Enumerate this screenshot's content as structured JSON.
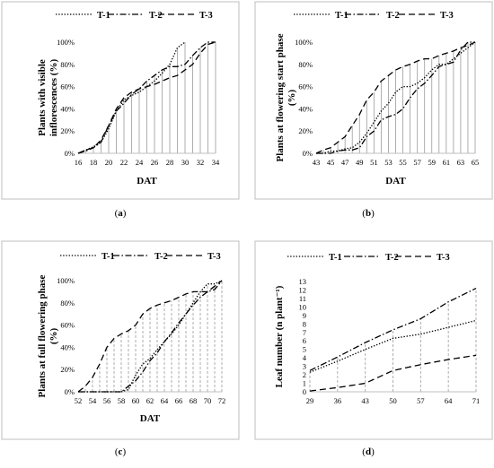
{
  "chart_data": [
    {
      "type": "line",
      "caption": "a",
      "xlabel": "DAT",
      "ylabel": "Plants with visible inflorescences (%)",
      "x": [
        16,
        17,
        18,
        19,
        20,
        21,
        22,
        23,
        24,
        25,
        26,
        27,
        28,
        29,
        30,
        31,
        32,
        33,
        34
      ],
      "x_ticks": [
        "16",
        "18",
        "20",
        "22",
        "24",
        "26",
        "28",
        "30",
        "32",
        "34"
      ],
      "y_ticks": [
        "0%",
        "20%",
        "40%",
        "60%",
        "80%",
        "100%"
      ],
      "ylim": [
        0,
        100
      ],
      "series": [
        {
          "name": "T-1",
          "values": [
            0,
            3,
            6,
            10,
            22,
            38,
            48,
            52,
            55,
            60,
            65,
            72,
            80,
            95,
            100,
            null,
            null,
            null,
            null
          ]
        },
        {
          "name": "T-2",
          "values": [
            0,
            2,
            5,
            10,
            25,
            38,
            45,
            53,
            58,
            65,
            70,
            75,
            78,
            78,
            80,
            88,
            95,
            100,
            100
          ]
        },
        {
          "name": "T-3",
          "values": [
            0,
            3,
            5,
            12,
            25,
            40,
            50,
            55,
            58,
            60,
            62,
            65,
            68,
            70,
            75,
            80,
            90,
            98,
            100
          ]
        }
      ]
    },
    {
      "type": "line",
      "caption": "b",
      "xlabel": "DAT",
      "ylabel": "Plants at flowering start phase (%)",
      "x": [
        43,
        44,
        45,
        46,
        47,
        48,
        49,
        50,
        51,
        52,
        53,
        54,
        55,
        56,
        57,
        58,
        59,
        60,
        61,
        62,
        63,
        64,
        65
      ],
      "x_ticks": [
        "43",
        "45",
        "47",
        "49",
        "51",
        "53",
        "55",
        "57",
        "59",
        "61",
        "63",
        "65"
      ],
      "y_ticks": [
        "0%",
        "20%",
        "40%",
        "60%",
        "80%",
        "100%"
      ],
      "ylim": [
        0,
        100
      ],
      "series": [
        {
          "name": "T-1",
          "values": [
            0,
            0,
            2,
            2,
            4,
            5,
            10,
            18,
            28,
            38,
            45,
            55,
            60,
            60,
            63,
            68,
            75,
            80,
            80,
            85,
            90,
            95,
            100
          ]
        },
        {
          "name": "T-2",
          "values": [
            0,
            0,
            0,
            2,
            3,
            3,
            5,
            15,
            20,
            30,
            33,
            35,
            40,
            50,
            58,
            63,
            70,
            78,
            80,
            82,
            93,
            100,
            100
          ]
        },
        {
          "name": "T-3",
          "values": [
            0,
            3,
            5,
            10,
            15,
            25,
            35,
            48,
            55,
            65,
            70,
            75,
            78,
            80,
            83,
            85,
            85,
            88,
            90,
            92,
            95,
            97,
            100
          ]
        }
      ]
    },
    {
      "type": "line",
      "caption": "c",
      "xlabel": "DAT",
      "ylabel": "Plants at full flowering phase (%)",
      "x": [
        52,
        53,
        54,
        55,
        56,
        57,
        58,
        59,
        60,
        61,
        62,
        63,
        64,
        65,
        66,
        67,
        68,
        69,
        70,
        71,
        72
      ],
      "x_ticks": [
        "52",
        "54",
        "56",
        "58",
        "60",
        "62",
        "64",
        "66",
        "68",
        "70",
        "72"
      ],
      "y_ticks": [
        "0%",
        "20%",
        "40%",
        "60%",
        "80%",
        "100%"
      ],
      "ylim": [
        0,
        100
      ],
      "series": [
        {
          "name": "T-1",
          "values": [
            0,
            0,
            0,
            0,
            0,
            0,
            0,
            2,
            15,
            25,
            30,
            38,
            45,
            52,
            60,
            70,
            80,
            90,
            97,
            97,
            100
          ]
        },
        {
          "name": "T-2",
          "values": [
            0,
            0,
            0,
            0,
            0,
            0,
            0,
            5,
            10,
            18,
            28,
            35,
            45,
            53,
            62,
            70,
            78,
            85,
            90,
            92,
            100
          ]
        },
        {
          "name": "T-3",
          "values": [
            0,
            5,
            13,
            25,
            40,
            48,
            52,
            55,
            60,
            70,
            75,
            78,
            80,
            82,
            85,
            88,
            90,
            90,
            90,
            95,
            100
          ]
        }
      ]
    },
    {
      "type": "line",
      "caption": "d",
      "xlabel": "",
      "ylabel": "Leaf number (n plant⁻¹)",
      "x": [
        29,
        36,
        43,
        50,
        57,
        64,
        71
      ],
      "x_ticks": [
        "29",
        "36",
        "43",
        "50",
        "57",
        "64",
        "71"
      ],
      "y_ticks": [
        "0",
        "1",
        "2",
        "3",
        "4",
        "5",
        "6",
        "7",
        "8",
        "9",
        "10",
        "11",
        "12",
        "13"
      ],
      "ylim": [
        0,
        13
      ],
      "series": [
        {
          "name": "T-1",
          "values": [
            2.3,
            3.6,
            5.0,
            6.3,
            6.8,
            7.6,
            8.4
          ]
        },
        {
          "name": "T-2",
          "values": [
            2.5,
            4.1,
            5.8,
            7.3,
            8.6,
            10.6,
            12.2
          ]
        },
        {
          "name": "T-3",
          "values": [
            0.1,
            0.5,
            1.0,
            2.5,
            3.2,
            3.8,
            4.3
          ]
        }
      ]
    }
  ]
}
